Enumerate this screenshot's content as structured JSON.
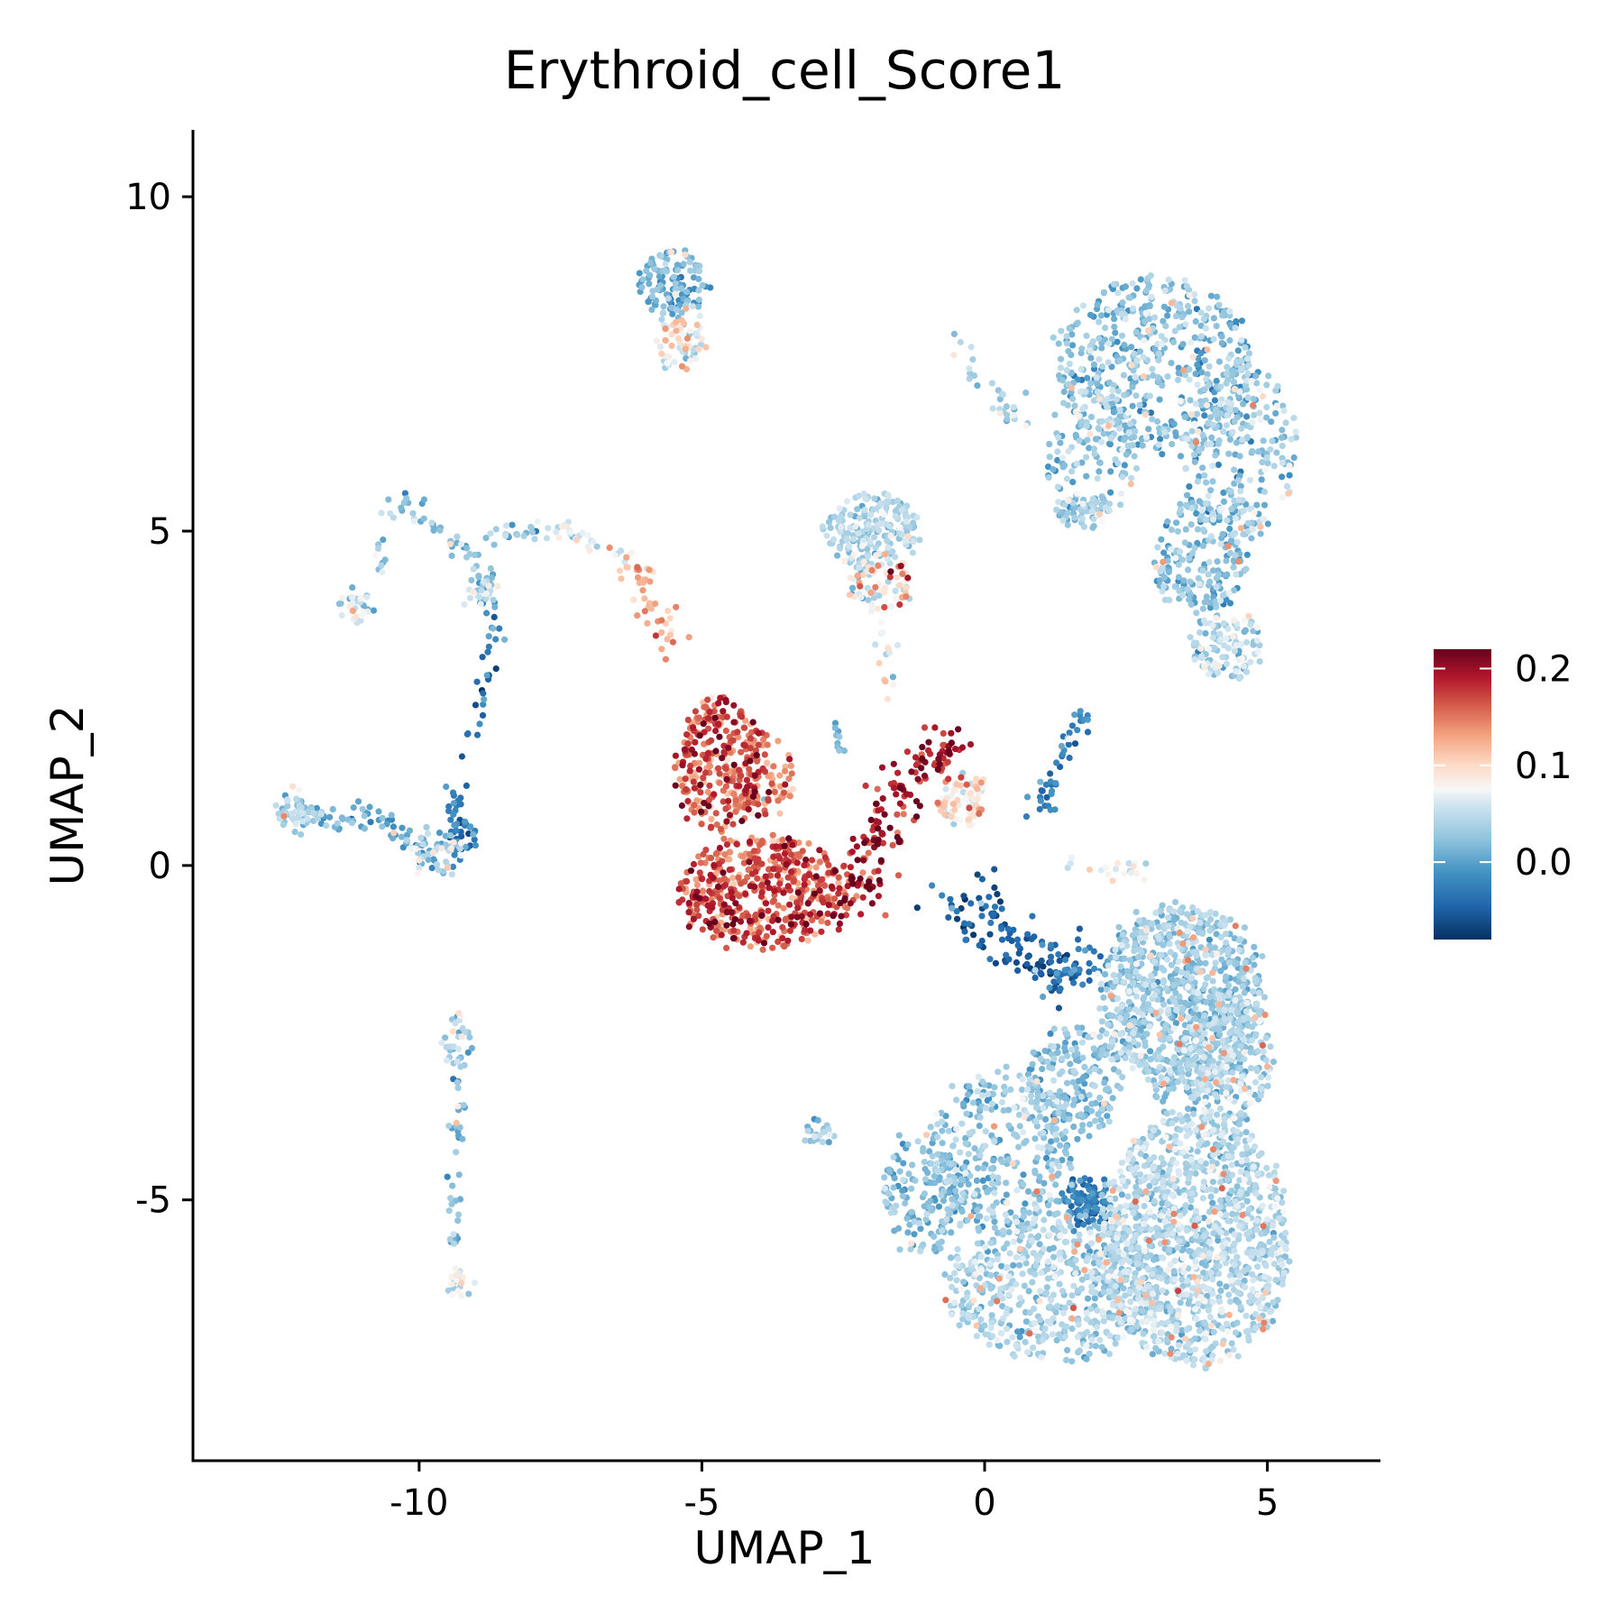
{
  "chart_data": {
    "type": "scatter",
    "title": "Erythroid_cell_Score1",
    "xlabel": "UMAP_1",
    "ylabel": "UMAP_2",
    "xlim": [
      -14.0,
      7.0
    ],
    "ylim": [
      -8.9,
      11.0
    ],
    "xticks": [
      {
        "value": -10,
        "label": "-10"
      },
      {
        "value": -5,
        "label": "-5"
      },
      {
        "value": 0,
        "label": "0"
      },
      {
        "value": 5,
        "label": "5"
      }
    ],
    "yticks": [
      {
        "value": -5,
        "label": "-5"
      },
      {
        "value": 0,
        "label": "0"
      },
      {
        "value": 5,
        "label": "5"
      },
      {
        "value": 10,
        "label": "10"
      }
    ],
    "grid": false,
    "legend": {
      "position": "right",
      "type": "continuous colorbar",
      "range": [
        -0.08,
        0.22
      ],
      "ticks": [
        {
          "value": 0.2,
          "label": "0.2"
        },
        {
          "value": 0.1,
          "label": "0.1"
        },
        {
          "value": 0.0,
          "label": "0.0"
        }
      ]
    },
    "color_scale": {
      "name": "RdBu reversed",
      "stops": [
        {
          "value": -0.08,
          "color": "#053061"
        },
        {
          "value": -0.045,
          "color": "#2166ac"
        },
        {
          "value": -0.01,
          "color": "#4393c3"
        },
        {
          "value": 0.025,
          "color": "#92c5de"
        },
        {
          "value": 0.06,
          "color": "#d1e5f0"
        },
        {
          "value": 0.075,
          "color": "#f7f7f7"
        },
        {
          "value": 0.1,
          "color": "#fddbc7"
        },
        {
          "value": 0.13,
          "color": "#f4a582"
        },
        {
          "value": 0.16,
          "color": "#d6604d"
        },
        {
          "value": 0.19,
          "color": "#b2182b"
        },
        {
          "value": 0.22,
          "color": "#67001f"
        }
      ]
    },
    "clusters": [
      {
        "shape": "blob",
        "cx": 3.7,
        "cy": -5.6,
        "rx": 1.7,
        "ry": 1.9,
        "n": 1250,
        "score": 0.04,
        "spread": 0.018
      },
      {
        "shape": "blob",
        "cx": 1.2,
        "cy": -6.3,
        "rx": 1.9,
        "ry": 1.1,
        "n": 550,
        "score": 0.035,
        "spread": 0.018
      },
      {
        "shape": "blob",
        "cx": 0.3,
        "cy": -4.3,
        "rx": 1.3,
        "ry": 1.2,
        "n": 350,
        "score": 0.025,
        "spread": 0.02
      },
      {
        "shape": "blob",
        "cx": -1.1,
        "cy": -4.9,
        "rx": 0.7,
        "ry": 0.9,
        "n": 160,
        "score": 0.02,
        "spread": 0.018
      },
      {
        "shape": "blob",
        "cx": 1.8,
        "cy": -5.0,
        "rx": 0.4,
        "ry": 0.35,
        "n": 100,
        "score": -0.03,
        "spread": 0.015
      },
      {
        "shape": "blob",
        "cx": 3.5,
        "cy": -2.0,
        "rx": 1.45,
        "ry": 1.45,
        "n": 900,
        "score": 0.03,
        "spread": 0.018
      },
      {
        "shape": "blob",
        "cx": 4.3,
        "cy": -2.9,
        "rx": 0.8,
        "ry": 1.0,
        "n": 250,
        "score": 0.035,
        "spread": 0.018
      },
      {
        "shape": "blob",
        "cx": 1.6,
        "cy": -3.2,
        "rx": 0.8,
        "ry": 0.8,
        "n": 200,
        "score": 0.02,
        "spread": 0.02
      },
      {
        "shape": "blob",
        "cx": -2.9,
        "cy": -4.0,
        "rx": 0.25,
        "ry": 0.15,
        "n": 25,
        "score": 0.02,
        "spread": 0.02
      },
      {
        "shape": "blob",
        "cx": 3.0,
        "cy": 7.5,
        "rx": 1.8,
        "ry": 1.3,
        "n": 500,
        "score": 0.02,
        "spread": 0.025
      },
      {
        "shape": "blob",
        "cx": 4.5,
        "cy": 6.2,
        "rx": 1.0,
        "ry": 1.3,
        "n": 240,
        "score": 0.03,
        "spread": 0.022
      },
      {
        "shape": "blob",
        "cx": 3.8,
        "cy": 4.6,
        "rx": 0.8,
        "ry": 0.9,
        "n": 200,
        "score": 0.02,
        "spread": 0.02
      },
      {
        "shape": "blob",
        "cx": 4.3,
        "cy": 3.3,
        "rx": 0.6,
        "ry": 0.5,
        "n": 110,
        "score": 0.04,
        "spread": 0.025
      },
      {
        "shape": "blob",
        "cx": 1.9,
        "cy": 6.3,
        "rx": 0.8,
        "ry": 1.1,
        "n": 150,
        "score": 0.02,
        "spread": 0.022
      },
      {
        "shape": "blob",
        "cx": 1.7,
        "cy": 5.3,
        "rx": 0.5,
        "ry": 0.25,
        "n": 50,
        "score": 0.03,
        "spread": 0.02
      },
      {
        "shape": "blob",
        "cx": -5.5,
        "cy": 8.7,
        "rx": 0.6,
        "ry": 0.5,
        "n": 120,
        "score": 0.01,
        "spread": 0.02
      },
      {
        "shape": "blob",
        "cx": -5.4,
        "cy": 7.8,
        "rx": 0.45,
        "ry": 0.4,
        "n": 60,
        "score": 0.08,
        "spread": 0.03
      },
      {
        "shape": "blob",
        "cx": -2.0,
        "cy": 5.0,
        "rx": 0.85,
        "ry": 0.55,
        "n": 200,
        "score": 0.04,
        "spread": 0.018
      },
      {
        "shape": "blob",
        "cx": -1.9,
        "cy": 4.2,
        "rx": 0.6,
        "ry": 0.35,
        "n": 80,
        "score": 0.08,
        "spread": 0.04
      },
      {
        "shape": "blob",
        "cx": -3.9,
        "cy": -0.4,
        "rx": 1.5,
        "ry": 0.8,
        "n": 500,
        "score": 0.16,
        "spread": 0.03
      },
      {
        "shape": "blob",
        "cx": -4.7,
        "cy": 1.5,
        "rx": 0.75,
        "ry": 1.0,
        "n": 300,
        "score": 0.16,
        "spread": 0.03
      },
      {
        "shape": "blob",
        "cx": -3.9,
        "cy": 1.3,
        "rx": 0.5,
        "ry": 0.6,
        "n": 80,
        "score": 0.13,
        "spread": 0.04
      },
      {
        "shape": "blob",
        "cx": -0.4,
        "cy": 1.0,
        "rx": 0.4,
        "ry": 0.35,
        "n": 80,
        "score": 0.08,
        "spread": 0.03
      },
      {
        "shape": "blob",
        "cx": -12.2,
        "cy": 0.8,
        "rx": 0.35,
        "ry": 0.25,
        "n": 50,
        "score": 0.04,
        "spread": 0.025
      },
      {
        "shape": "blob",
        "cx": -9.7,
        "cy": 0.2,
        "rx": 0.5,
        "ry": 0.35,
        "n": 60,
        "score": 0.03,
        "spread": 0.04
      },
      {
        "shape": "blob",
        "cx": -9.2,
        "cy": 0.4,
        "rx": 0.25,
        "ry": 0.25,
        "n": 30,
        "score": -0.04,
        "spread": 0.02
      },
      {
        "shape": "blob",
        "cx": -11.1,
        "cy": 3.9,
        "rx": 0.25,
        "ry": 0.25,
        "n": 30,
        "score": 0.04,
        "spread": 0.03
      },
      {
        "shape": "blob",
        "cx": -8.9,
        "cy": 4.1,
        "rx": 0.25,
        "ry": 0.2,
        "n": 30,
        "score": 0.04,
        "spread": 0.03
      },
      {
        "shape": "blob",
        "cx": -9.3,
        "cy": -2.6,
        "rx": 0.25,
        "ry": 0.35,
        "n": 30,
        "score": 0.04,
        "spread": 0.03
      },
      {
        "shape": "blob",
        "cx": -9.3,
        "cy": -6.2,
        "rx": 0.2,
        "ry": 0.25,
        "n": 20,
        "score": 0.06,
        "spread": 0.03
      },
      {
        "shape": "line",
        "from": [
          -12.3,
          0.75
        ],
        "to": [
          -10.8,
          0.75
        ],
        "n": 40,
        "score": 0.01,
        "spread": 0.02,
        "jitter": 0.1
      },
      {
        "shape": "line",
        "from": [
          -10.9,
          0.75
        ],
        "to": [
          -10.0,
          0.3
        ],
        "n": 25,
        "score": 0.0,
        "spread": 0.02,
        "jitter": 0.08
      },
      {
        "shape": "line",
        "from": [
          -9.2,
          0.3
        ],
        "to": [
          -9.4,
          1.1
        ],
        "n": 20,
        "score": -0.03,
        "spread": 0.02,
        "jitter": 0.1
      },
      {
        "shape": "line",
        "from": [
          -9.3,
          1.3
        ],
        "to": [
          -8.6,
          3.3
        ],
        "n": 20,
        "score": -0.03,
        "spread": 0.02,
        "jitter": 0.1
      },
      {
        "shape": "line",
        "from": [
          -8.6,
          3.3
        ],
        "to": [
          -8.9,
          4.5
        ],
        "n": 20,
        "score": 0.0,
        "spread": 0.02,
        "jitter": 0.1
      },
      {
        "shape": "line",
        "from": [
          -8.9,
          4.5
        ],
        "to": [
          -10.5,
          5.6
        ],
        "n": 35,
        "score": 0.02,
        "spread": 0.02,
        "jitter": 0.08
      },
      {
        "shape": "line",
        "from": [
          -10.5,
          5.6
        ],
        "to": [
          -10.7,
          4.4
        ],
        "n": 12,
        "score": 0.04,
        "spread": 0.02,
        "jitter": 0.08
      },
      {
        "shape": "line",
        "from": [
          -8.8,
          4.9
        ],
        "to": [
          -7.7,
          5.1
        ],
        "n": 20,
        "score": 0.03,
        "spread": 0.02,
        "jitter": 0.06
      },
      {
        "shape": "line",
        "from": [
          -7.7,
          5.1
        ],
        "to": [
          -6.3,
          4.6
        ],
        "n": 30,
        "score": 0.07,
        "spread": 0.02,
        "jitter": 0.08
      },
      {
        "shape": "line",
        "from": [
          -6.3,
          4.6
        ],
        "to": [
          -5.5,
          3.3
        ],
        "n": 45,
        "score": 0.12,
        "spread": 0.02,
        "jitter": 0.15
      },
      {
        "shape": "line",
        "from": [
          -2.4,
          -0.6
        ],
        "to": [
          -1.3,
          1.4
        ],
        "n": 120,
        "score": 0.19,
        "spread": 0.025,
        "jitter": 0.25
      },
      {
        "shape": "line",
        "from": [
          -1.3,
          1.4
        ],
        "to": [
          -0.4,
          1.8
        ],
        "n": 50,
        "score": 0.19,
        "spread": 0.025,
        "jitter": 0.15
      },
      {
        "shape": "line",
        "from": [
          -0.6,
          -0.5
        ],
        "to": [
          1.3,
          -1.7
        ],
        "n": 110,
        "score": -0.05,
        "spread": 0.015,
        "jitter": 0.25
      },
      {
        "shape": "line",
        "from": [
          1.3,
          -1.7
        ],
        "to": [
          2.2,
          -1.4
        ],
        "n": 40,
        "score": -0.03,
        "spread": 0.02,
        "jitter": 0.15
      },
      {
        "shape": "line",
        "from": [
          0.9,
          0.8
        ],
        "to": [
          1.8,
          2.3
        ],
        "n": 45,
        "score": -0.02,
        "spread": 0.02,
        "jitter": 0.1
      },
      {
        "shape": "line",
        "from": [
          1.3,
          0.0
        ],
        "to": [
          3.0,
          -0.1
        ],
        "n": 20,
        "score": 0.07,
        "spread": 0.02,
        "jitter": 0.1
      },
      {
        "shape": "line",
        "from": [
          -0.6,
          7.8
        ],
        "to": [
          0.7,
          6.6
        ],
        "n": 30,
        "score": 0.04,
        "spread": 0.025,
        "jitter": 0.12
      },
      {
        "shape": "line",
        "from": [
          -1.9,
          3.6
        ],
        "to": [
          -1.6,
          2.7
        ],
        "n": 15,
        "score": 0.08,
        "spread": 0.03,
        "jitter": 0.08
      },
      {
        "shape": "line",
        "from": [
          -9.3,
          -3.0
        ],
        "to": [
          -9.4,
          -5.8
        ],
        "n": 40,
        "score": 0.02,
        "spread": 0.02,
        "jitter": 0.06
      },
      {
        "shape": "line",
        "from": [
          -2.6,
          2.1
        ],
        "to": [
          -2.5,
          1.6
        ],
        "n": 10,
        "score": 0.02,
        "spread": 0.02,
        "jitter": 0.05
      }
    ]
  }
}
